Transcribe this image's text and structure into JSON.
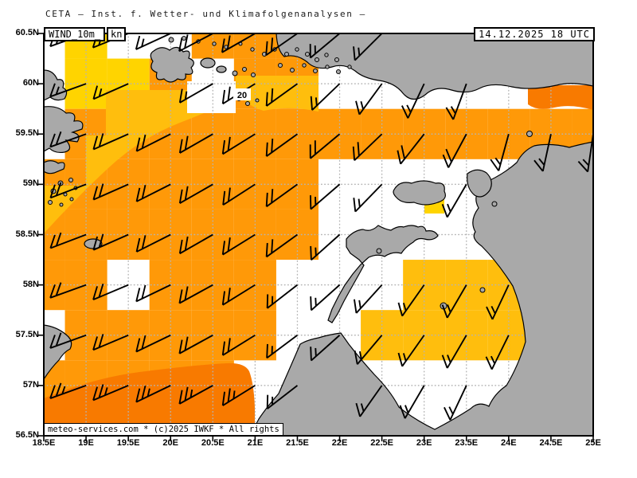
{
  "title": "CETA — Inst. f. Wetter- und Klimafolgenanalysen —",
  "header": {
    "product": "WIND_10m_",
    "unit": "kn",
    "datetime": "14.12.2025 18 UTC"
  },
  "watermark": "meteo-services.com * (c)2025 IWKF * All rights",
  "contour_label": "20",
  "colors": {
    "sea": "#ffffff",
    "land": "#a9a9a9",
    "coast": "#000000",
    "frame": "#000000",
    "graticule": "#b4b4b4",
    "barb": "#000000",
    "yellow": "#ffd400",
    "amber": "#ffbe0d",
    "orange": "#ff9908",
    "dark_orange": "#f87a00"
  },
  "axes": {
    "lat_labels": [
      "60.5N",
      "60N",
      "59.5N",
      "59N",
      "58.5N",
      "58N",
      "57.5N",
      "57N",
      "56.5N"
    ],
    "lon_labels": [
      "18.5E",
      "19E",
      "19.5E",
      "20E",
      "20.5E",
      "21E",
      "21.5E",
      "22E",
      "22.5E",
      "23E",
      "23.5E",
      "24E",
      "24.5E",
      "25E"
    ]
  },
  "chart_data": {
    "type": "heatmap",
    "title": "WIND_10m [kn], 14.12.2025 18 UTC",
    "bounds": {
      "lon": [
        18.5,
        25.0
      ],
      "lat": [
        56.5,
        60.5
      ]
    },
    "grid_step_deg": 0.5,
    "unit": "kn",
    "wind_levels": [
      {
        "code": "Y",
        "range_kn": "10-15",
        "color_key": "yellow"
      },
      {
        "code": "A",
        "range_kn": "15-20",
        "color_key": "amber"
      },
      {
        "code": "O",
        "range_kn": "20-25",
        "color_key": "orange"
      },
      {
        "code": "D",
        "range_kn": "25-30",
        "color_key": "dark_orange"
      }
    ],
    "isotach_label_value": 20,
    "cells": [
      [
        1,
        0,
        "Y"
      ],
      [
        1,
        1,
        "Y"
      ],
      [
        2,
        1,
        "Y"
      ],
      [
        4,
        0,
        "O"
      ],
      [
        5,
        0,
        "O"
      ],
      [
        6,
        0,
        "O"
      ],
      [
        3,
        1,
        "O"
      ],
      [
        5,
        1,
        "O"
      ],
      [
        6,
        1,
        "O"
      ],
      [
        1,
        2,
        "O"
      ],
      [
        2,
        2,
        "O"
      ],
      [
        3,
        2,
        "O"
      ],
      [
        4,
        2,
        "O"
      ],
      [
        5,
        2,
        "O"
      ],
      [
        6,
        2,
        "O"
      ],
      [
        7,
        2,
        "O"
      ],
      [
        8,
        2,
        "O"
      ],
      [
        9,
        2,
        "O"
      ],
      [
        10,
        2,
        "O"
      ],
      [
        11,
        2,
        "O"
      ],
      [
        12,
        2,
        "O"
      ],
      [
        13,
        2,
        "O"
      ],
      [
        0,
        3,
        "O"
      ],
      [
        1,
        3,
        "O"
      ],
      [
        2,
        3,
        "O"
      ],
      [
        3,
        3,
        "O"
      ],
      [
        4,
        3,
        "O"
      ],
      [
        5,
        3,
        "O"
      ],
      [
        6,
        3,
        "O"
      ],
      [
        0,
        4,
        "O"
      ],
      [
        1,
        4,
        "O"
      ],
      [
        2,
        4,
        "O"
      ],
      [
        3,
        4,
        "O"
      ],
      [
        4,
        4,
        "O"
      ],
      [
        5,
        4,
        "O"
      ],
      [
        6,
        4,
        "O"
      ],
      [
        0,
        5,
        "O"
      ],
      [
        1,
        5,
        "O"
      ],
      [
        3,
        5,
        "O"
      ],
      [
        4,
        5,
        "O"
      ],
      [
        5,
        5,
        "O"
      ],
      [
        1,
        6,
        "O"
      ],
      [
        2,
        6,
        "O"
      ],
      [
        3,
        6,
        "O"
      ],
      [
        4,
        6,
        "O"
      ],
      [
        5,
        6,
        "O"
      ],
      [
        0,
        7,
        "O"
      ],
      [
        1,
        7,
        "O"
      ],
      [
        2,
        7,
        "O"
      ],
      [
        3,
        7,
        "O"
      ],
      [
        4,
        7,
        "O"
      ],
      [
        0,
        8,
        "O"
      ],
      [
        1,
        8,
        "O"
      ],
      [
        2,
        8,
        "O"
      ],
      [
        3,
        8,
        "O"
      ],
      [
        4,
        8,
        "O"
      ],
      [
        9,
        5,
        "A"
      ],
      [
        10,
        5,
        "A"
      ],
      [
        11,
        5,
        "A"
      ],
      [
        8,
        6,
        "A"
      ],
      [
        9,
        6,
        "A"
      ],
      [
        10,
        6,
        "A"
      ],
      [
        11,
        6,
        "A"
      ]
    ],
    "barbs": [
      [
        18.5,
        60.5,
        15,
        250
      ],
      [
        19,
        60.5,
        15,
        250
      ],
      [
        19.5,
        60.5,
        15,
        248
      ],
      [
        20,
        60.5,
        15,
        245
      ],
      [
        20.5,
        60.5,
        20,
        242
      ],
      [
        21,
        60.5,
        20,
        240
      ],
      [
        21.5,
        60.5,
        20,
        235
      ],
      [
        22,
        60.5,
        15,
        230
      ],
      [
        22.5,
        60.5,
        15,
        225
      ],
      [
        19,
        60,
        15,
        250
      ],
      [
        19.5,
        60,
        15,
        246
      ],
      [
        20.5,
        60,
        15,
        240
      ],
      [
        21,
        60,
        20,
        238
      ],
      [
        21.5,
        60,
        20,
        234
      ],
      [
        22,
        60,
        15,
        226
      ],
      [
        22.5,
        60,
        15,
        216
      ],
      [
        23,
        60,
        15,
        205
      ],
      [
        23.5,
        60,
        15,
        200
      ],
      [
        19,
        59.5,
        20,
        250
      ],
      [
        19.5,
        59.5,
        20,
        246
      ],
      [
        20,
        59.5,
        20,
        243
      ],
      [
        20.5,
        59.5,
        20,
        240
      ],
      [
        21,
        59.5,
        20,
        238
      ],
      [
        21.5,
        59.5,
        20,
        234
      ],
      [
        22,
        59.5,
        20,
        230
      ],
      [
        22.5,
        59.5,
        20,
        226
      ],
      [
        23,
        59.5,
        20,
        218
      ],
      [
        23.5,
        59.5,
        20,
        208
      ],
      [
        24,
        59.5,
        15,
        195
      ],
      [
        24.5,
        59.5,
        15,
        192
      ],
      [
        25,
        59.5,
        15,
        188
      ],
      [
        18.5,
        59,
        20,
        251
      ],
      [
        19,
        59,
        20,
        249
      ],
      [
        19.5,
        59,
        20,
        246
      ],
      [
        20,
        59,
        20,
        243
      ],
      [
        20.5,
        59,
        20,
        240
      ],
      [
        21,
        59,
        20,
        237
      ],
      [
        21.5,
        59,
        20,
        234
      ],
      [
        22,
        59,
        15,
        229
      ],
      [
        22.5,
        59,
        15,
        224
      ],
      [
        23.5,
        59,
        15,
        210
      ],
      [
        18.5,
        58.5,
        20,
        251
      ],
      [
        19,
        58.5,
        20,
        249
      ],
      [
        19.5,
        58.5,
        20,
        246
      ],
      [
        20,
        58.5,
        20,
        243
      ],
      [
        20.5,
        58.5,
        20,
        240
      ],
      [
        21,
        58.5,
        20,
        238
      ],
      [
        21.5,
        58.5,
        20,
        234
      ],
      [
        22,
        58.5,
        15,
        228
      ],
      [
        18.5,
        58,
        20,
        252
      ],
      [
        19,
        58,
        20,
        250
      ],
      [
        19.5,
        58,
        20,
        247
      ],
      [
        20,
        58,
        20,
        244
      ],
      [
        20.5,
        58,
        20,
        241
      ],
      [
        21,
        58,
        20,
        238
      ],
      [
        21.5,
        58,
        15,
        232
      ],
      [
        22,
        58,
        15,
        228
      ],
      [
        22.5,
        58,
        15,
        222
      ],
      [
        23,
        58,
        15,
        215
      ],
      [
        23.5,
        58,
        15,
        210
      ],
      [
        24,
        58,
        15,
        205
      ],
      [
        19,
        57.5,
        20,
        250
      ],
      [
        19.5,
        57.5,
        20,
        247
      ],
      [
        20,
        57.5,
        20,
        244
      ],
      [
        20.5,
        57.5,
        20,
        241
      ],
      [
        21,
        57.5,
        20,
        238
      ],
      [
        21.5,
        57.5,
        15,
        233
      ],
      [
        22,
        57.5,
        15,
        228
      ],
      [
        22.5,
        57.5,
        15,
        220
      ],
      [
        23,
        57.5,
        15,
        215
      ],
      [
        23.5,
        57.5,
        15,
        210
      ],
      [
        24,
        57.5,
        15,
        206
      ],
      [
        18.5,
        57,
        25,
        252
      ],
      [
        19,
        57,
        25,
        250
      ],
      [
        19.5,
        57,
        25,
        247
      ],
      [
        20,
        57,
        25,
        244
      ],
      [
        20.5,
        57,
        25,
        241
      ],
      [
        21,
        57,
        25,
        238
      ],
      [
        21.5,
        57,
        15,
        232
      ],
      [
        22.5,
        57,
        15,
        215
      ],
      [
        23,
        57,
        15,
        210
      ],
      [
        23.5,
        57,
        15,
        205
      ],
      [
        18.5,
        56.5,
        25,
        252
      ],
      [
        19,
        56.5,
        25,
        250
      ],
      [
        19.5,
        56.5,
        25,
        248
      ],
      [
        20,
        56.5,
        25,
        245
      ],
      [
        20.5,
        56.5,
        25,
        242
      ],
      [
        21,
        56.5,
        25,
        240
      ]
    ]
  }
}
